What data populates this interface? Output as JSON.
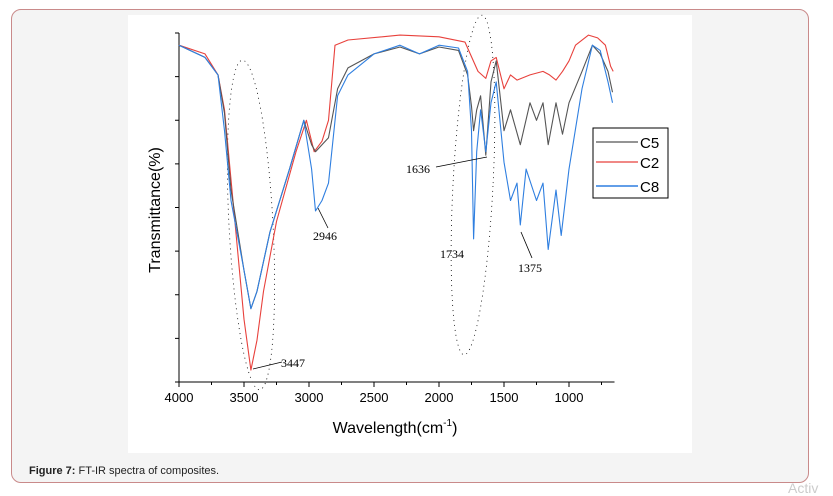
{
  "caption": {
    "label": "Figure 7:",
    "text": " FT-IR spectra of composites."
  },
  "watermark": "Activ",
  "chart_data": {
    "type": "line",
    "title": "",
    "xlabel": "Wavelength(cm",
    "xlabel_sup": "-1",
    "xlabel_close": ")",
    "ylabel": "Transmittance(%)",
    "xlim": [
      4000,
      650
    ],
    "x_reversed": true,
    "ylim": [
      0,
      100
    ],
    "y_tick_labels_shown": false,
    "y_tick_count": 8,
    "x_ticks": [
      4000,
      3500,
      3000,
      2500,
      2000,
      1500,
      1000
    ],
    "x_tick_labels": [
      "4000",
      "3500",
      "3000",
      "2500",
      "2000",
      "1500",
      "1000"
    ],
    "grid": false,
    "legend_placement": "right",
    "series": [
      {
        "name": "C5",
        "color": "#555555",
        "x": [
          4000,
          3800,
          3700,
          3650,
          3600,
          3500,
          3447,
          3400,
          3300,
          3150,
          3040,
          2980,
          2950,
          2900,
          2850,
          2780,
          2700,
          2500,
          2300,
          2150,
          2000,
          1850,
          1780,
          1750,
          1734,
          1710,
          1680,
          1640,
          1600,
          1560,
          1500,
          1450,
          1375,
          1300,
          1250,
          1200,
          1160,
          1100,
          1050,
          1000,
          900,
          820,
          760,
          700,
          665
        ],
        "y": [
          96.5,
          93,
          88,
          77,
          55,
          32,
          21,
          26,
          43,
          61,
          75,
          68,
          66,
          68,
          70,
          84,
          90,
          94,
          96,
          94,
          96,
          95,
          88,
          79,
          72,
          78,
          82,
          65,
          86,
          92,
          72,
          78,
          68,
          80,
          75,
          80,
          68,
          80,
          71,
          80,
          89,
          96.5,
          94,
          89,
          83
        ]
      },
      {
        "name": "C2",
        "color": "#e8413c",
        "x": [
          4000,
          3800,
          3700,
          3650,
          3600,
          3550,
          3500,
          3447,
          3400,
          3350,
          3250,
          3100,
          3020,
          2960,
          2900,
          2850,
          2800,
          2700,
          2300,
          2000,
          1800,
          1700,
          1640,
          1600,
          1560,
          1500,
          1450,
          1400,
          1300,
          1200,
          1150,
          1100,
          1050,
          1000,
          950,
          850,
          780,
          720,
          680,
          660
        ],
        "y": [
          96.5,
          94,
          88,
          78,
          58,
          38,
          18,
          3.4,
          12,
          26,
          46,
          66,
          75,
          66,
          69,
          75,
          96.5,
          98,
          99.4,
          98.9,
          97.4,
          89,
          87,
          92,
          93,
          84,
          88,
          86.5,
          88,
          89,
          88,
          86.5,
          89,
          92,
          96.5,
          99.4,
          98.6,
          96.5,
          90.5,
          89
        ]
      },
      {
        "name": "C8",
        "color": "#2f7fe0",
        "x": [
          4000,
          3800,
          3700,
          3650,
          3600,
          3500,
          3447,
          3400,
          3300,
          3150,
          3040,
          2980,
          2950,
          2900,
          2850,
          2780,
          2700,
          2500,
          2300,
          2150,
          2000,
          1850,
          1780,
          1750,
          1734,
          1710,
          1680,
          1640,
          1600,
          1560,
          1500,
          1450,
          1400,
          1375,
          1330,
          1250,
          1200,
          1160,
          1100,
          1060,
          1000,
          900,
          820,
          760,
          700,
          665
        ],
        "y": [
          96.5,
          93,
          88,
          72,
          52,
          32,
          21,
          26,
          43,
          61,
          75,
          61,
          49,
          52,
          57,
          82,
          88,
          94,
          96.5,
          94,
          96.5,
          95.7,
          89,
          72,
          41,
          66,
          78,
          66,
          80,
          86,
          63,
          52,
          57,
          45,
          61,
          52,
          57,
          38,
          55,
          42,
          61,
          84,
          96.5,
          95,
          86,
          80
        ]
      }
    ],
    "annotations": [
      {
        "text": "3447",
        "x": 3447
      },
      {
        "text": "2946",
        "x": 2946
      },
      {
        "text": "1636",
        "x": 1636
      },
      {
        "text": "1734",
        "x": 1734
      },
      {
        "text": "1375",
        "x": 1375
      }
    ]
  }
}
